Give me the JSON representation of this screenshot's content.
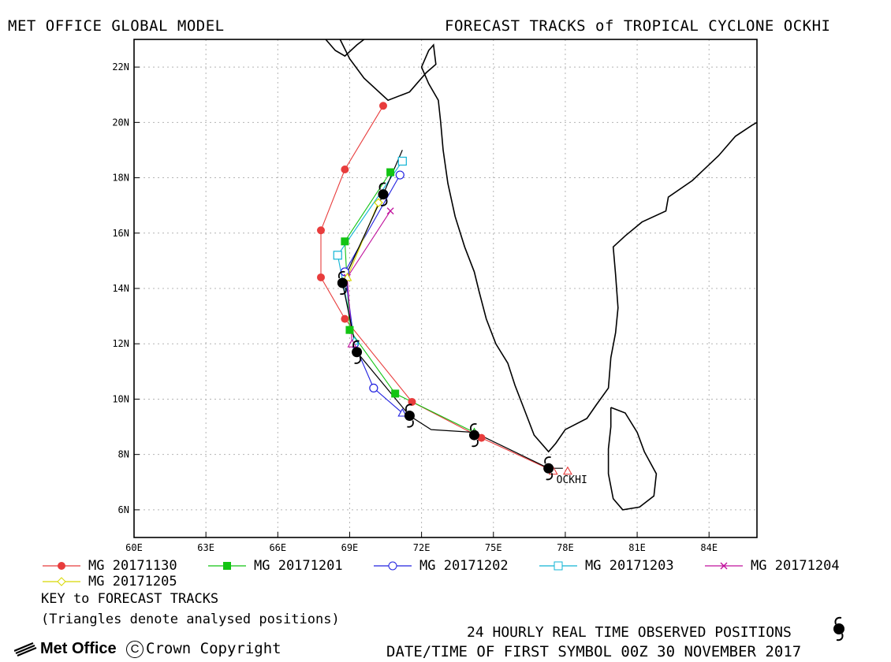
{
  "header": {
    "left_title": "MET OFFICE GLOBAL MODEL",
    "right_title": "FORECAST TRACKS of TROPICAL CYCLONE OCKHI"
  },
  "map": {
    "lon_range": [
      60,
      86
    ],
    "lat_range": [
      5,
      23
    ],
    "x_ticks": [
      "60E",
      "63E",
      "66E",
      "69E",
      "72E",
      "75E",
      "78E",
      "81E",
      "84E"
    ],
    "y_ticks": [
      "6N",
      "8N",
      "10N",
      "12N",
      "14N",
      "16N",
      "18N",
      "20N",
      "22N"
    ],
    "storm_label": "OCKHI",
    "observed_positions": [
      [
        77.3,
        7.5
      ],
      [
        74.2,
        8.7
      ],
      [
        71.5,
        9.4
      ],
      [
        69.3,
        11.7
      ],
      [
        68.7,
        14.2
      ],
      [
        70.4,
        17.4
      ]
    ],
    "observed_path": [
      [
        77.9,
        7.5
      ],
      [
        77.3,
        7.5
      ],
      [
        74.2,
        8.8
      ],
      [
        72.4,
        8.9
      ],
      [
        71.5,
        9.4
      ],
      [
        69.3,
        11.7
      ],
      [
        68.7,
        14.2
      ],
      [
        70.4,
        17.4
      ],
      [
        71.2,
        19.0
      ]
    ],
    "analysed_triangle": [
      78.1,
      7.4
    ],
    "tracks": [
      {
        "color": "#e83c3c",
        "marker": "circle-filled",
        "points": [
          [
            77.5,
            7.4
          ],
          [
            74.5,
            8.6
          ],
          [
            71.6,
            9.9
          ],
          [
            68.8,
            12.9
          ],
          [
            67.8,
            14.4
          ],
          [
            67.8,
            16.1
          ],
          [
            68.8,
            18.3
          ],
          [
            70.4,
            20.6
          ]
        ]
      },
      {
        "color": "#12c412",
        "marker": "square-filled",
        "points": [
          [
            74.2,
            8.8
          ],
          [
            70.9,
            10.2
          ],
          [
            69.0,
            12.5
          ],
          [
            68.8,
            15.7
          ],
          [
            70.7,
            18.2
          ]
        ]
      },
      {
        "color": "#2020e0",
        "marker": "circle-open",
        "points": [
          [
            71.2,
            9.5
          ],
          [
            70.0,
            10.4
          ],
          [
            69.2,
            12.0
          ],
          [
            68.8,
            14.6
          ],
          [
            71.1,
            18.1
          ]
        ]
      },
      {
        "color": "#10b4d4",
        "marker": "square-open",
        "points": [
          [
            69.2,
            12.1
          ],
          [
            68.5,
            15.2
          ],
          [
            71.2,
            18.6
          ]
        ]
      },
      {
        "color": "#c0109c",
        "marker": "x",
        "points": [
          [
            69.1,
            12.0
          ],
          [
            68.9,
            14.4
          ],
          [
            70.7,
            16.8
          ]
        ]
      },
      {
        "color": "#d8d800",
        "marker": "diamond-open",
        "points": [
          [
            68.9,
            14.4
          ],
          [
            70.2,
            17.1
          ]
        ]
      }
    ]
  },
  "legend": {
    "items": [
      {
        "label": "MG 20171130",
        "color": "#e83c3c",
        "marker": "circle-filled"
      },
      {
        "label": "MG 20171201",
        "color": "#12c412",
        "marker": "square-filled"
      },
      {
        "label": "MG 20171202",
        "color": "#2020e0",
        "marker": "circle-open"
      },
      {
        "label": "MG 20171203",
        "color": "#10b4d4",
        "marker": "square-open"
      },
      {
        "label": "MG 20171204",
        "color": "#c0109c",
        "marker": "x"
      },
      {
        "label": "MG 20171205",
        "color": "#d8d800",
        "marker": "diamond-open"
      }
    ],
    "key_title": "KEY to FORECAST TRACKS",
    "key_note": "(Triangles denote analysed positions)"
  },
  "footer": {
    "observed_label": "24 HOURLY REAL TIME OBSERVED POSITIONS",
    "datetime_label": "DATE/TIME OF FIRST SYMBOL 00Z 30 NOVEMBER 2017",
    "logo_text": "Met Office",
    "copyright_text": "Crown Copyright",
    "copyright_symbol": "C"
  }
}
